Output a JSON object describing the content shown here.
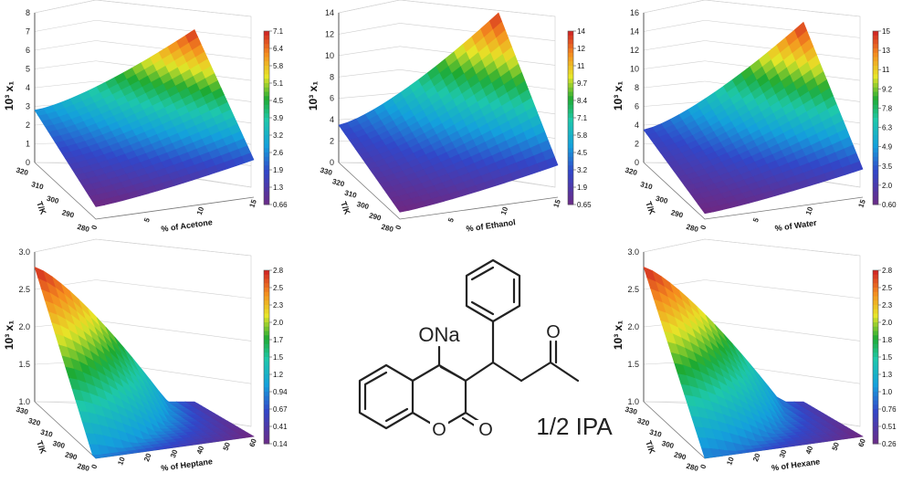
{
  "chart_data": [
    {
      "type": "surface",
      "ylabel": "10³ x₁",
      "xlabel": "% of Acetone",
      "tlabel": "T/K",
      "z_ticks": [
        "0",
        "1",
        "2",
        "3",
        "4",
        "5",
        "6",
        "7",
        "8"
      ],
      "t_ticks": [
        "280",
        "290",
        "300",
        "310",
        "320"
      ],
      "x_ticks": [
        "0",
        "5",
        "10",
        "15"
      ],
      "colorbar": [
        "7.1",
        "6.4",
        "5.8",
        "5.1",
        "4.5",
        "3.9",
        "3.2",
        "2.6",
        "1.9",
        "1.3",
        "0.66"
      ],
      "values": {
        "low_T_0pct": 0.66,
        "high_T_0pct": 2.8,
        "low_T_max": 2.0,
        "high_T_max": 7.1
      }
    },
    {
      "type": "surface",
      "ylabel": "10³ x₁",
      "xlabel": "% of Ethanol",
      "tlabel": "T/K",
      "z_ticks": [
        "0",
        "2",
        "4",
        "6",
        "8",
        "10",
        "12",
        "14"
      ],
      "t_ticks": [
        "280",
        "290",
        "300",
        "310",
        "320",
        "330"
      ],
      "x_ticks": [
        "0",
        "5",
        "10",
        "15"
      ],
      "colorbar": [
        "14",
        "12",
        "11",
        "9.7",
        "8.4",
        "7.1",
        "5.8",
        "4.5",
        "3.2",
        "1.9",
        "0.65"
      ],
      "values": {
        "low_T_0pct": 0.65,
        "high_T_0pct": 3.5,
        "low_T_max": 3.0,
        "high_T_max": 14
      }
    },
    {
      "type": "surface",
      "ylabel": "10³ x₁",
      "xlabel": "% of Water",
      "tlabel": "T/K",
      "z_ticks": [
        "0",
        "2",
        "4",
        "6",
        "8",
        "10",
        "12",
        "14",
        "16"
      ],
      "t_ticks": [
        "280",
        "290",
        "300",
        "310",
        "320"
      ],
      "x_ticks": [
        "0",
        "5",
        "10",
        "15"
      ],
      "colorbar": [
        "15",
        "13",
        "11",
        "9.2",
        "7.8",
        "6.3",
        "4.9",
        "3.5",
        "2.0",
        "0.60"
      ],
      "values": {
        "low_T_0pct": 0.6,
        "high_T_0pct": 3.5,
        "low_T_max": 3.0,
        "high_T_max": 15
      }
    },
    {
      "type": "surface",
      "ylabel": "10³ x₁",
      "xlabel": "% of Heptane",
      "tlabel": "T/K",
      "z_ticks": [
        "1.0",
        "1.5",
        "2.0",
        "2.5",
        "3.0"
      ],
      "t_ticks": [
        "280",
        "290",
        "300",
        "310",
        "320",
        "330"
      ],
      "x_ticks": [
        "0",
        "10",
        "20",
        "30",
        "40",
        "50",
        "60"
      ],
      "colorbar": [
        "2.8",
        "2.5",
        "2.3",
        "2.0",
        "1.7",
        "1.5",
        "1.2",
        "0.94",
        "0.67",
        "0.41",
        "0.14"
      ],
      "values": {
        "low_T_0pct": 0.9,
        "high_T_0pct": 2.8,
        "low_T_max": 0.14,
        "high_T_max": 0.5
      }
    },
    {
      "type": "surface",
      "ylabel": "10³ x₁",
      "xlabel": "% of Hexane",
      "tlabel": "T/K",
      "z_ticks": [
        "1.0",
        "1.5",
        "2.0",
        "2.5",
        "3.0"
      ],
      "t_ticks": [
        "280",
        "290",
        "300",
        "310",
        "320",
        "330"
      ],
      "x_ticks": [
        "0",
        "10",
        "20",
        "30",
        "40",
        "50",
        "60"
      ],
      "colorbar": [
        "2.8",
        "2.5",
        "2.3",
        "2.0",
        "1.8",
        "1.5",
        "1.3",
        "1.0",
        "0.76",
        "0.51",
        "0.26"
      ],
      "values": {
        "low_T_0pct": 1.0,
        "high_T_0pct": 2.8,
        "low_T_max": 0.26,
        "high_T_max": 0.6
      }
    }
  ],
  "structure": {
    "substituent": "ONa",
    "ring_oxygen": "O",
    "carbonyl_oxygen": "O",
    "ketone_oxygen": "O",
    "solvate": "1/2 IPA"
  }
}
